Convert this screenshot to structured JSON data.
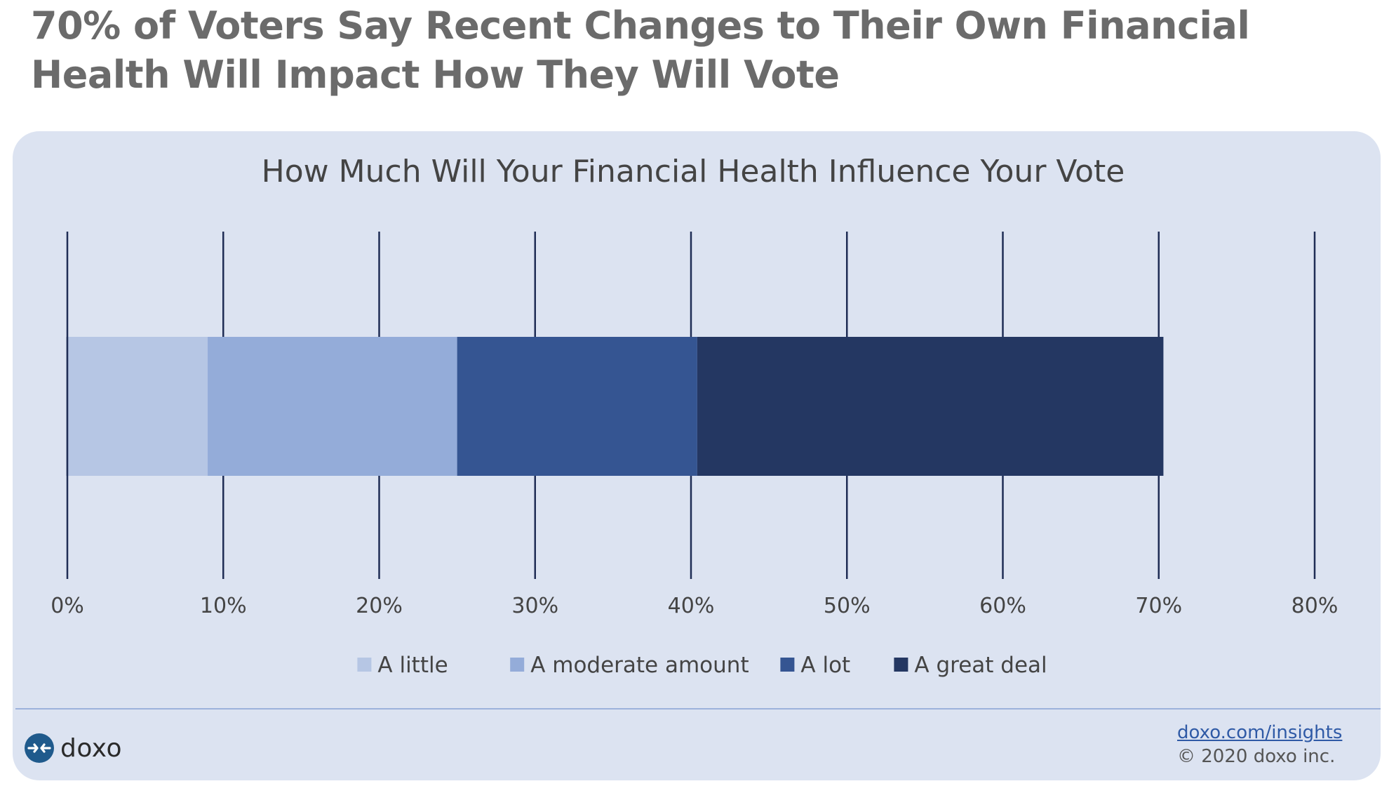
{
  "page": {
    "title": "70% of Voters Say Recent Changes to Their Own Financial Health Will Impact How They Will Vote"
  },
  "footer": {
    "brand_name": "doxo",
    "link_text": "doxo.com/insights",
    "copyright": "© 2020 doxo inc."
  },
  "icons": {
    "brand": "doxo-logo-icon"
  },
  "colors": {
    "panel_background": "#dce3f1",
    "gridline": "#1f2d55",
    "title_text": "#6b6b6b",
    "link": "#2f5aa6"
  },
  "chart_data": {
    "type": "bar",
    "orientation": "horizontal",
    "stacked": true,
    "title": "How Much Will Your Financial Health Influence Your Vote",
    "xlabel": "",
    "ylabel": "",
    "xlim": [
      0,
      80
    ],
    "x_tick_values": [
      0,
      10,
      20,
      30,
      40,
      50,
      60,
      70,
      80
    ],
    "x_tick_labels": [
      "0%",
      "10%",
      "20%",
      "30%",
      "40%",
      "50%",
      "60%",
      "70%",
      "80%"
    ],
    "x_unit": "%",
    "categories": [
      ""
    ],
    "series": [
      {
        "name": "A little",
        "values": [
          9
        ],
        "color": "#b6c6e4"
      },
      {
        "name": "A moderate amount",
        "values": [
          16
        ],
        "color": "#94acd9"
      },
      {
        "name": "A lot",
        "values": [
          15.4
        ],
        "color": "#355592"
      },
      {
        "name": "A great deal",
        "values": [
          29.9
        ],
        "color": "#243762"
      }
    ],
    "total": 70.3,
    "grid": true,
    "legend_position": "bottom"
  }
}
